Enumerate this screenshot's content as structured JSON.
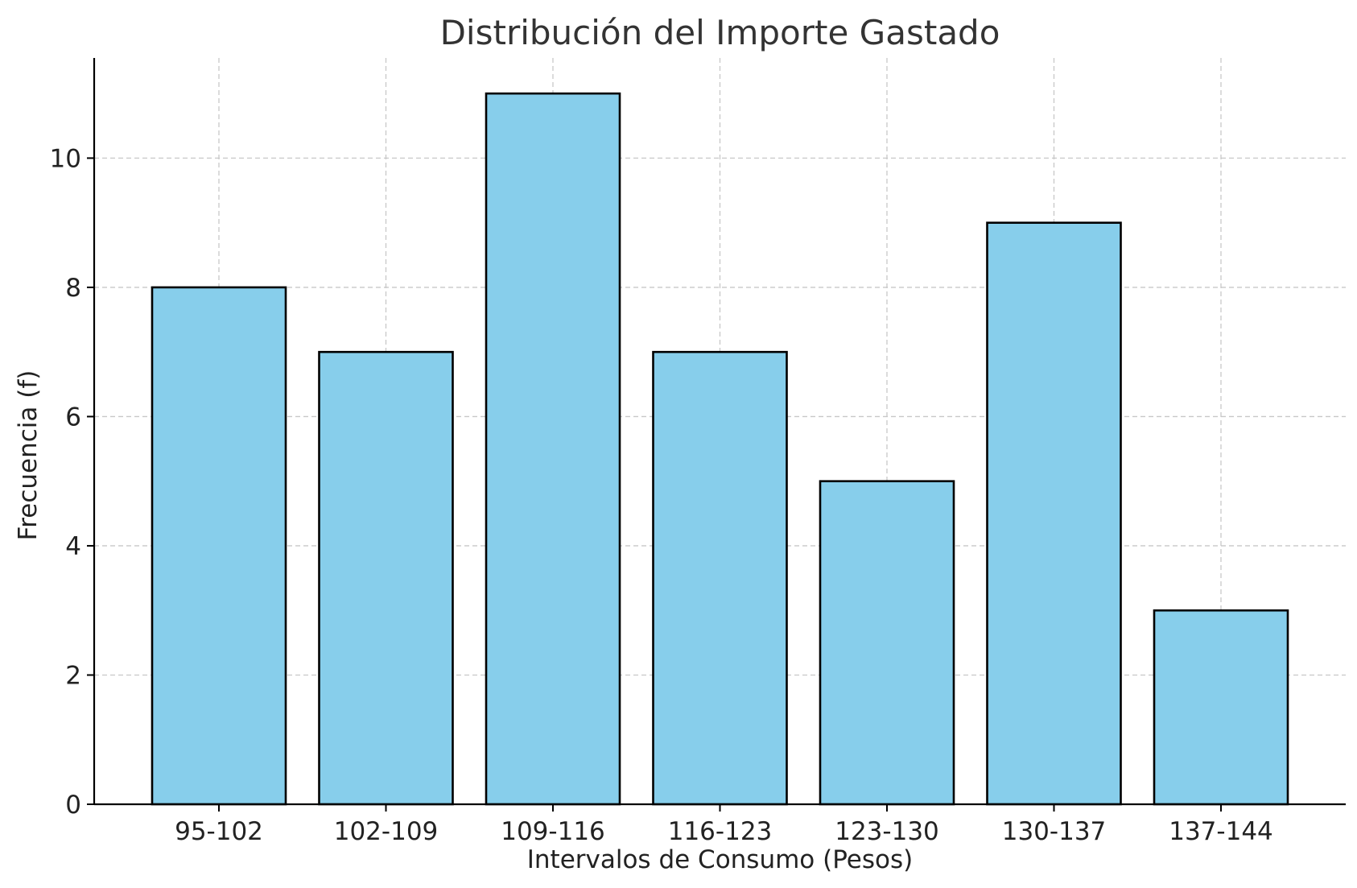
{
  "chart_data": {
    "type": "bar",
    "title": "Distribución del Importe Gastado",
    "xlabel": "Intervalos de Consumo (Pesos)",
    "ylabel": "Frecuencia (f)",
    "categories": [
      "95-102",
      "102-109",
      "109-116",
      "116-123",
      "123-130",
      "130-137",
      "137-144"
    ],
    "values": [
      8,
      7,
      11,
      7,
      5,
      9,
      3
    ],
    "ylim": [
      0,
      11.55
    ],
    "yticks": [
      0,
      2,
      4,
      6,
      8,
      10
    ],
    "grid": true,
    "legend": "none",
    "colors": {
      "bar_fill": "#87CEEB",
      "bar_edge": "#000000",
      "grid": "#c8c8c8",
      "text": "#222222",
      "title": "#333333"
    }
  }
}
